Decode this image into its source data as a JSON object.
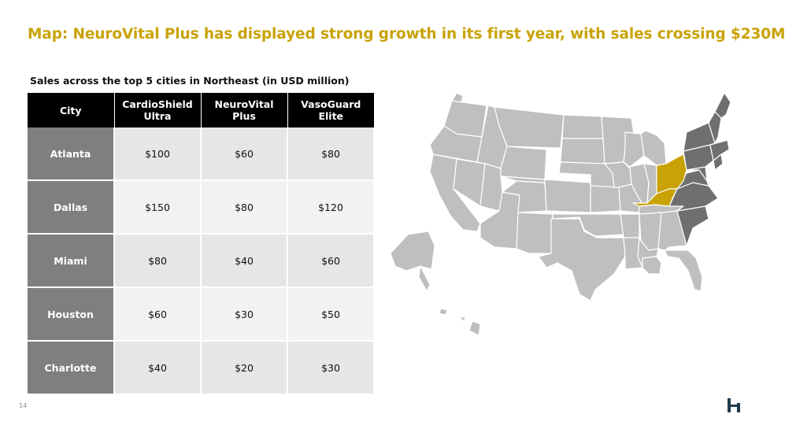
{
  "title": "Map: NeuroVital Plus has displayed strong growth in its first year, with sales crossing $230M",
  "subtitle": "Sales across the top 5 cities in Northeast (in USD million)",
  "table": {
    "headers": [
      "City",
      "CardioShield Ultra",
      "NeuroVital Plus",
      "VasoGuard Elite"
    ],
    "rows": [
      {
        "city": "Atlanta",
        "cardio": "$100",
        "neuro": "$60",
        "vaso": "$80"
      },
      {
        "city": "Dallas",
        "cardio": "$150",
        "neuro": "$80",
        "vaso": "$120"
      },
      {
        "city": "Miami",
        "cardio": "$80",
        "neuro": "$40",
        "vaso": "$60"
      },
      {
        "city": "Houston",
        "cardio": "$60",
        "neuro": "$30",
        "vaso": "$50"
      },
      {
        "city": "Charlotte",
        "cardio": "$40",
        "neuro": "$20",
        "vaso": "$30"
      }
    ]
  },
  "page_number": "14",
  "colors": {
    "accent": "#C9A206",
    "header_bg": "#000000",
    "city_cell_bg": "#7F7F7F",
    "map_base": "#BFBFBF",
    "map_highlight_dark": "#6F6F6F",
    "map_highlight_gold": "#C9A206"
  },
  "map": {
    "icon": "us-states-map",
    "highlighted_gold_states": [
      "Ohio",
      "Kentucky"
    ],
    "highlighted_dark_states": [
      "Northeast",
      "Mid-Atlantic",
      "Virginia",
      "North Carolina",
      "South Carolina"
    ]
  },
  "logo": "brand-logo-icon"
}
